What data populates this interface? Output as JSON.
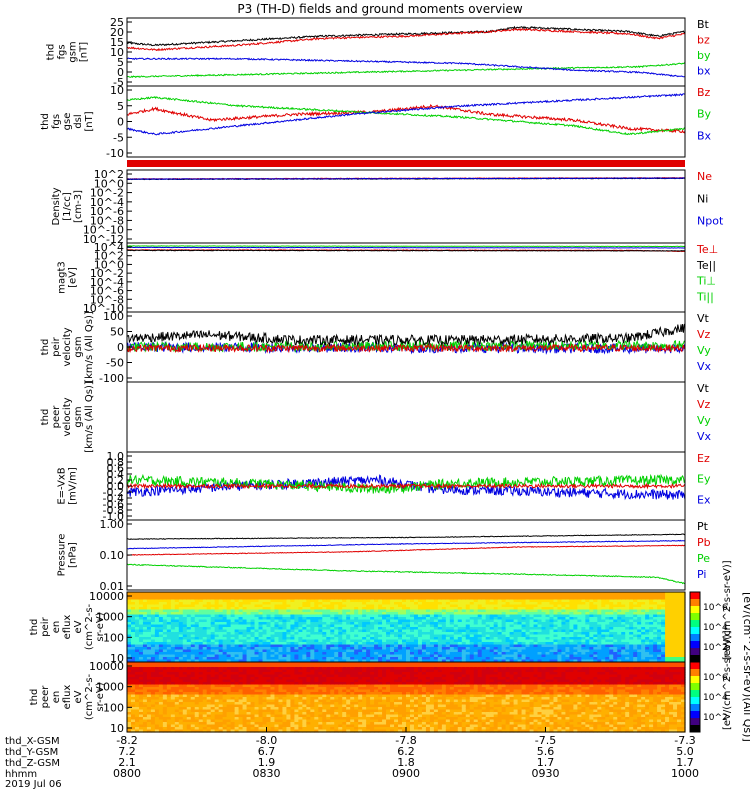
{
  "title": "P3 (TH-D) fields and ground moments overview",
  "colors": {
    "black": "#000000",
    "red": "#e00000",
    "green": "#00d000",
    "blue": "#0000e0",
    "frame": "#000000"
  },
  "chart_data": [
    {
      "type": "line",
      "ylabel": [
        "thd",
        "fgs",
        "gsm",
        "[nT]"
      ],
      "yticks": [
        "25",
        "20",
        "15",
        "10",
        "5",
        "0",
        "-5"
      ],
      "ylim": [
        -5,
        25
      ],
      "legend": [
        {
          "name": "Bt",
          "color": "black"
        },
        {
          "name": "bz",
          "color": "red"
        },
        {
          "name": "by",
          "color": "green"
        },
        {
          "name": "bx",
          "color": "blue"
        }
      ],
      "series": [
        {
          "name": "Bt",
          "color": "black",
          "noise": 0.4,
          "values": [
            [
              0,
              14
            ],
            [
              0.05,
              13
            ],
            [
              0.2,
              15
            ],
            [
              0.35,
              17
            ],
            [
              0.5,
              18
            ],
            [
              0.65,
              19
            ],
            [
              0.7,
              21
            ],
            [
              0.8,
              20
            ],
            [
              0.9,
              19
            ],
            [
              0.95,
              17
            ],
            [
              1,
              19
            ]
          ]
        },
        {
          "name": "bz",
          "color": "red",
          "noise": 0.4,
          "values": [
            [
              0,
              12
            ],
            [
              0.05,
              11
            ],
            [
              0.2,
              13
            ],
            [
              0.35,
              16
            ],
            [
              0.5,
              17
            ],
            [
              0.65,
              19
            ],
            [
              0.7,
              20
            ],
            [
              0.8,
              19
            ],
            [
              0.9,
              18
            ],
            [
              0.95,
              16
            ],
            [
              1,
              18
            ]
          ]
        },
        {
          "name": "by",
          "color": "green",
          "noise": 0.3,
          "values": [
            [
              0,
              -1
            ],
            [
              0.2,
              0
            ],
            [
              0.4,
              1
            ],
            [
              0.6,
              2
            ],
            [
              0.8,
              3
            ],
            [
              0.92,
              3.5
            ],
            [
              1,
              5
            ]
          ]
        },
        {
          "name": "bx",
          "color": "blue",
          "noise": 0.3,
          "values": [
            [
              0,
              7
            ],
            [
              0.2,
              7
            ],
            [
              0.4,
              6
            ],
            [
              0.6,
              5
            ],
            [
              0.8,
              2
            ],
            [
              0.92,
              1
            ],
            [
              1,
              -1
            ]
          ]
        }
      ]
    },
    {
      "type": "line",
      "ylabel": [
        "thd",
        "fgs",
        "gse",
        "dsl",
        "[nT]"
      ],
      "yticks": [
        "10",
        "5",
        "0",
        "-5",
        "-10"
      ],
      "ylim": [
        -15,
        10
      ],
      "legend": [
        {
          "name": "Bz",
          "color": "red"
        },
        {
          "name": "By",
          "color": "green"
        },
        {
          "name": "Bx",
          "color": "blue"
        }
      ],
      "series": [
        {
          "name": "Bz",
          "color": "red",
          "noise": 0.5,
          "values": [
            [
              0,
              0
            ],
            [
              0.05,
              2
            ],
            [
              0.15,
              -2
            ],
            [
              0.3,
              0
            ],
            [
              0.45,
              1
            ],
            [
              0.55,
              3
            ],
            [
              0.65,
              0
            ],
            [
              0.8,
              -2
            ],
            [
              0.9,
              -5
            ],
            [
              1,
              -6
            ]
          ]
        },
        {
          "name": "By",
          "color": "green",
          "noise": 0.3,
          "values": [
            [
              0,
              5
            ],
            [
              0.05,
              6
            ],
            [
              0.2,
              3
            ],
            [
              0.4,
              1
            ],
            [
              0.6,
              -1
            ],
            [
              0.8,
              -4
            ],
            [
              0.9,
              -7
            ],
            [
              1,
              -5
            ]
          ]
        },
        {
          "name": "Bx",
          "color": "blue",
          "noise": 0.3,
          "values": [
            [
              0,
              -5
            ],
            [
              0.05,
              -7
            ],
            [
              0.2,
              -4
            ],
            [
              0.4,
              0
            ],
            [
              0.6,
              3
            ],
            [
              0.8,
              5
            ],
            [
              0.9,
              6
            ],
            [
              1,
              7
            ]
          ]
        }
      ]
    },
    {
      "type": "bar",
      "role": "mode-strip",
      "color": "red"
    },
    {
      "type": "line",
      "log": true,
      "ylabel": [
        "Density",
        "[1/cc]",
        "[cm-3]"
      ],
      "yticks": [
        "10^2",
        "10^0",
        "10^-2",
        "10^-4",
        "10^-6",
        "10^-8",
        "10^-10",
        "10^-12"
      ],
      "ylim": [
        -12,
        2
      ],
      "legend": [
        {
          "name": "Ne",
          "color": "red"
        },
        {
          "name": "Ni",
          "color": "black"
        },
        {
          "name": "Npot",
          "color": "blue"
        }
      ],
      "series": [
        {
          "name": "Ne",
          "color": "red",
          "noise": 0.05,
          "values": [
            [
              0,
              0.3
            ],
            [
              1,
              0.5
            ]
          ]
        },
        {
          "name": "Ni",
          "color": "black",
          "noise": 0.05,
          "values": [
            [
              0,
              0.2
            ],
            [
              1,
              0.4
            ]
          ]
        },
        {
          "name": "Npot",
          "color": "blue",
          "noise": 0.05,
          "values": [
            [
              0,
              0.25
            ],
            [
              1,
              0.45
            ]
          ]
        }
      ]
    },
    {
      "type": "line",
      "log": true,
      "ylabel": [
        "magt3",
        "[eV]"
      ],
      "yticks": [
        "10^4",
        "10^2",
        "10^0",
        "10^-2",
        "10^-4",
        "10^-6",
        "10^-8",
        "10^-10"
      ],
      "ylim": [
        -10,
        4
      ],
      "legend": [
        {
          "name": "Te⊥",
          "color": "red"
        },
        {
          "name": "Te||",
          "color": "black"
        },
        {
          "name": "Ti⊥",
          "color": "green"
        },
        {
          "name": "Ti||",
          "color": "green"
        }
      ],
      "series": [
        {
          "name": "Ti",
          "color": "green",
          "noise": 0.03,
          "values": [
            [
              0,
              3.4
            ],
            [
              1,
              3.3
            ]
          ]
        },
        {
          "name": "Te",
          "color": "blue",
          "noise": 0.03,
          "values": [
            [
              0,
              3.1
            ],
            [
              1,
              3.0
            ]
          ]
        },
        {
          "name": "Te⊥",
          "color": "red",
          "noise": 0.05,
          "values": [
            [
              0,
              2.6
            ],
            [
              0.9,
              2.5
            ],
            [
              1,
              2.3
            ]
          ]
        },
        {
          "name": "Te||",
          "color": "black",
          "noise": 0.05,
          "values": [
            [
              0,
              2.5
            ],
            [
              1,
              2.4
            ]
          ]
        }
      ]
    },
    {
      "type": "line",
      "ylabel": [
        "thd",
        "peir",
        "velocity",
        "gsm",
        "[km/s (All Qs)]"
      ],
      "yticks": [
        "100",
        "50",
        "0",
        "-50",
        "-100"
      ],
      "ylim": [
        -100,
        100
      ],
      "legend": [
        {
          "name": "Vt",
          "color": "black"
        },
        {
          "name": "Vz",
          "color": "red"
        },
        {
          "name": "Vy",
          "color": "green"
        },
        {
          "name": "Vx",
          "color": "blue"
        }
      ],
      "series": [
        {
          "name": "Vx",
          "color": "blue",
          "noise": 14,
          "values": [
            [
              0,
              0
            ],
            [
              1,
              -5
            ]
          ]
        },
        {
          "name": "Vy",
          "color": "green",
          "noise": 14,
          "values": [
            [
              0,
              0
            ],
            [
              1,
              5
            ]
          ]
        },
        {
          "name": "Vz",
          "color": "red",
          "noise": 10,
          "values": [
            [
              0,
              -3
            ],
            [
              1,
              -3
            ]
          ]
        },
        {
          "name": "Vt",
          "color": "black",
          "noise": 14,
          "values": [
            [
              0,
              25
            ],
            [
              0.15,
              35
            ],
            [
              0.3,
              20
            ],
            [
              0.6,
              20
            ],
            [
              0.9,
              25
            ],
            [
              1,
              55
            ]
          ]
        }
      ]
    },
    {
      "type": "line",
      "ylabel": [
        "thd",
        "peer",
        "velocity",
        "gsm",
        "[km/s (All Qs)]"
      ],
      "yticks": [],
      "legend": [
        {
          "name": "Vt",
          "color": "black"
        },
        {
          "name": "Vz",
          "color": "red"
        },
        {
          "name": "Vy",
          "color": "green"
        },
        {
          "name": "Vx",
          "color": "blue"
        }
      ],
      "series": []
    },
    {
      "type": "line",
      "ylabel": [
        "E=-VxB",
        "[mV/m]"
      ],
      "yticks": [
        "1.0",
        "0.8",
        "0.6",
        "0.4",
        "0.2",
        "0.0",
        "-0.2",
        "-0.4",
        "-0.6",
        "-0.8",
        "-1.0"
      ],
      "ylim": [
        -1.1,
        1.1
      ],
      "legend": [
        {
          "name": "Ez",
          "color": "red"
        },
        {
          "name": "Ey",
          "color": "green"
        },
        {
          "name": "Ex",
          "color": "blue"
        }
      ],
      "series": [
        {
          "name": "Ex",
          "color": "blue",
          "noise": 0.16,
          "values": [
            [
              0,
              -0.2
            ],
            [
              0.2,
              0
            ],
            [
              0.45,
              0.2
            ],
            [
              0.55,
              -0.1
            ],
            [
              1,
              -0.3
            ]
          ]
        },
        {
          "name": "Ey",
          "color": "green",
          "noise": 0.16,
          "values": [
            [
              0,
              0.2
            ],
            [
              0.2,
              0.1
            ],
            [
              0.45,
              -0.1
            ],
            [
              0.6,
              0.1
            ],
            [
              1,
              0.2
            ]
          ]
        },
        {
          "name": "Ez",
          "color": "red",
          "noise": 0.06,
          "values": [
            [
              0,
              0
            ],
            [
              1,
              0
            ]
          ]
        }
      ]
    },
    {
      "type": "line",
      "log": true,
      "ylabel": [
        "Pressure",
        "[nPa]"
      ],
      "yticks": [
        "1.00",
        "0.10",
        "0.01"
      ],
      "ylim": [
        -2.1,
        0.1
      ],
      "legend": [
        {
          "name": "Pt",
          "color": "black"
        },
        {
          "name": "Pb",
          "color": "red"
        },
        {
          "name": "Pe",
          "color": "green"
        },
        {
          "name": "Pi",
          "color": "blue"
        }
      ],
      "series": [
        {
          "name": "Pt",
          "color": "black",
          "noise": 0.01,
          "values": [
            [
              0,
              -0.5
            ],
            [
              0.5,
              -0.45
            ],
            [
              1,
              -0.35
            ]
          ]
        },
        {
          "name": "Pi",
          "color": "blue",
          "noise": 0.01,
          "values": [
            [
              0,
              -0.8
            ],
            [
              0.5,
              -0.65
            ],
            [
              1,
              -0.55
            ]
          ]
        },
        {
          "name": "Pb",
          "color": "red",
          "noise": 0.01,
          "values": [
            [
              0,
              -1.0
            ],
            [
              0.4,
              -0.9
            ],
            [
              0.7,
              -0.75
            ],
            [
              1,
              -0.7
            ]
          ]
        },
        {
          "name": "Pe",
          "color": "green",
          "noise": 0.015,
          "values": [
            [
              0,
              -1.3
            ],
            [
              0.4,
              -1.5
            ],
            [
              0.7,
              -1.6
            ],
            [
              0.95,
              -1.7
            ],
            [
              1,
              -1.9
            ]
          ]
        }
      ]
    },
    {
      "type": "heatmap",
      "ylabel": [
        "thd",
        "peir",
        "en",
        "eflux",
        "eV",
        "(cm^2-s-",
        "sr-eV)"
      ],
      "yticks": [
        "10000",
        "1000",
        "100",
        "10"
      ],
      "colorbar": {
        "label": "[eV/(cm^2-s-sr-eV)]",
        "ticks": [
          "10^6",
          "10^4",
          "10^2"
        ]
      },
      "palette": "ion"
    },
    {
      "type": "heatmap",
      "ylabel": [
        "thd",
        "peer",
        "en",
        "eflux",
        "eV",
        "(cm^2-s-",
        "sr-eV)"
      ],
      "yticks": [
        "10000",
        "1000",
        "100",
        "10"
      ],
      "colorbar": {
        "label": "[eV/(cm^2-s-sr-eV)]",
        "ticks": [
          "10^6",
          "10^4",
          "10^2"
        ]
      },
      "palette": "electron"
    }
  ],
  "xaxis": {
    "rows": [
      {
        "label": "thd_X-GSM",
        "values": [
          "-8.2",
          "-8.0",
          "-7.8",
          "-7.5",
          "-7.3"
        ]
      },
      {
        "label": "thd_Y-GSM",
        "values": [
          "7.2",
          "6.7",
          "6.2",
          "5.6",
          "5.0"
        ]
      },
      {
        "label": "thd_Z-GSM",
        "values": [
          "2.1",
          "1.9",
          "1.8",
          "1.7",
          "1.7"
        ]
      },
      {
        "label": "hhmm",
        "values": [
          "0800",
          "0830",
          "0900",
          "0930",
          "1000"
        ]
      }
    ],
    "date": "2019 Jul 06"
  },
  "right_label": "[eV/(cm^2-s-sr-eV)(All Qs)]"
}
